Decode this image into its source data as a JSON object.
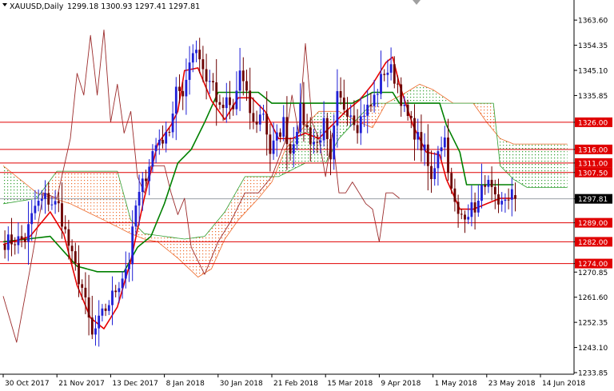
{
  "header": {
    "symbol_title": "XAUUSD,Daily",
    "ohlc": "1299.18 1300.93 1297.41 1297.81"
  },
  "colors": {
    "background": "#ffffff",
    "bull_candle": "#1f1fd6",
    "bear_candle": "#6b0000",
    "tenkan": "#e60000",
    "kijun": "#008000",
    "chikou": "#9b2b2b",
    "cloud_bull": "#2e9e2e",
    "cloud_bear": "#ee6a2a",
    "level_line": "#e00000",
    "level_box": "#e00000",
    "current_price_box": "#000000",
    "current_price_line": "#9aa0a6",
    "axis_text": "#000000"
  },
  "chart_data": {
    "type": "candlestick",
    "title": "XAUUSD,Daily",
    "ohlc_readout": {
      "open": 1299.18,
      "high": 1300.93,
      "low": 1297.41,
      "close": 1297.81
    },
    "ylim": [
      1233.85,
      1371.0
    ],
    "y_ticks": [
      "1363.60",
      "1354.35",
      "1345.10",
      "1335.85",
      "1326.00",
      "1316.00",
      "1311.00",
      "1307.50",
      "1297.81",
      "1289.00",
      "1282.00",
      "1274.00",
      "1270.85",
      "1261.60",
      "1252.35",
      "1243.10",
      "1233.85"
    ],
    "y_tick_values": [
      1363.6,
      1354.35,
      1345.1,
      1335.85,
      1270.85,
      1261.6,
      1252.35,
      1243.1,
      1233.85
    ],
    "x_ticks": [
      "30 Oct 2017",
      "21 Nov 2017",
      "13 Dec 2017",
      "8 Jan 2018",
      "30 Jan 2018",
      "21 Feb 2018",
      "15 Mar 2018",
      "9 Apr 2018",
      "1 May 2018",
      "23 May 2018",
      "14 Jun 2018"
    ],
    "x_tick_bars": [
      0,
      16,
      32,
      48,
      64,
      80,
      96,
      112,
      128,
      144,
      160
    ],
    "bars_total": 170,
    "candle_count": 153,
    "horizontal_levels": [
      1326.0,
      1316.0,
      1311.0,
      1307.5,
      1289.0,
      1282.0,
      1274.0
    ],
    "current_price": 1297.81,
    "anchors": {
      "close": [
        [
          0,
          1282
        ],
        [
          6,
          1283
        ],
        [
          9,
          1295
        ],
        [
          12,
          1298
        ],
        [
          16,
          1295
        ],
        [
          20,
          1276
        ],
        [
          23,
          1265
        ],
        [
          26,
          1247
        ],
        [
          29,
          1255
        ],
        [
          32,
          1262
        ],
        [
          34,
          1267
        ],
        [
          37,
          1275
        ],
        [
          39,
          1295
        ],
        [
          41,
          1303
        ],
        [
          44,
          1315
        ],
        [
          46,
          1320
        ],
        [
          48,
          1320
        ],
        [
          50,
          1330
        ],
        [
          51,
          1340
        ],
        [
          53,
          1333
        ],
        [
          55,
          1350
        ],
        [
          57,
          1354
        ],
        [
          60,
          1342
        ],
        [
          62,
          1340
        ],
        [
          64,
          1330
        ],
        [
          66,
          1333
        ],
        [
          68,
          1330
        ],
        [
          70,
          1345
        ],
        [
          72,
          1335
        ],
        [
          74,
          1325
        ],
        [
          77,
          1330
        ],
        [
          79,
          1315
        ],
        [
          81,
          1320
        ],
        [
          83,
          1326
        ],
        [
          85,
          1315
        ],
        [
          88,
          1330
        ],
        [
          91,
          1320
        ],
        [
          93,
          1318
        ],
        [
          95,
          1325
        ],
        [
          97,
          1310
        ],
        [
          99,
          1335
        ],
        [
          101,
          1332
        ],
        [
          103,
          1330
        ],
        [
          105,
          1325
        ],
        [
          107,
          1330
        ],
        [
          109,
          1332
        ],
        [
          111,
          1338
        ],
        [
          113,
          1345
        ],
        [
          115,
          1345
        ],
        [
          117,
          1340
        ],
        [
          119,
          1330
        ],
        [
          121,
          1325
        ],
        [
          123,
          1320
        ],
        [
          125,
          1315
        ],
        [
          127,
          1304
        ],
        [
          129,
          1317
        ],
        [
          131,
          1320
        ],
        [
          133,
          1300
        ],
        [
          135,
          1291
        ],
        [
          137,
          1293
        ],
        [
          139,
          1294
        ],
        [
          141,
          1296
        ],
        [
          143,
          1305
        ],
        [
          145,
          1300
        ],
        [
          147,
          1293
        ],
        [
          149,
          1298
        ],
        [
          151,
          1300
        ],
        [
          152,
          1297.81
        ]
      ],
      "tenkan": [
        [
          0,
          1281
        ],
        [
          8,
          1284
        ],
        [
          14,
          1293
        ],
        [
          18,
          1285
        ],
        [
          22,
          1266
        ],
        [
          26,
          1254
        ],
        [
          30,
          1250
        ],
        [
          34,
          1258
        ],
        [
          38,
          1275
        ],
        [
          42,
          1298
        ],
        [
          46,
          1318
        ],
        [
          50,
          1325
        ],
        [
          52,
          1330
        ],
        [
          54,
          1345
        ],
        [
          58,
          1346
        ],
        [
          62,
          1334
        ],
        [
          66,
          1327
        ],
        [
          70,
          1335
        ],
        [
          74,
          1335
        ],
        [
          78,
          1330
        ],
        [
          82,
          1320
        ],
        [
          86,
          1320
        ],
        [
          90,
          1322
        ],
        [
          94,
          1320
        ],
        [
          98,
          1325
        ],
        [
          102,
          1330
        ],
        [
          106,
          1334
        ],
        [
          110,
          1340
        ],
        [
          114,
          1348
        ],
        [
          116,
          1350
        ],
        [
          118,
          1340
        ],
        [
          122,
          1325
        ],
        [
          126,
          1315
        ],
        [
          130,
          1314
        ],
        [
          132,
          1305
        ],
        [
          136,
          1294
        ],
        [
          140,
          1294
        ],
        [
          144,
          1296
        ],
        [
          148,
          1298
        ],
        [
          152,
          1298
        ]
      ],
      "kijun": [
        [
          0,
          1282
        ],
        [
          14,
          1284
        ],
        [
          22,
          1273
        ],
        [
          28,
          1271
        ],
        [
          32,
          1271
        ],
        [
          36,
          1271
        ],
        [
          40,
          1280
        ],
        [
          44,
          1284
        ],
        [
          48,
          1296
        ],
        [
          52,
          1311
        ],
        [
          56,
          1316
        ],
        [
          60,
          1326
        ],
        [
          64,
          1337
        ],
        [
          76,
          1337
        ],
        [
          80,
          1333
        ],
        [
          88,
          1333
        ],
        [
          100,
          1333
        ],
        [
          104,
          1333
        ],
        [
          110,
          1337
        ],
        [
          116,
          1337
        ],
        [
          118,
          1333
        ],
        [
          122,
          1333
        ],
        [
          130,
          1333
        ],
        [
          132,
          1325
        ],
        [
          136,
          1315
        ],
        [
          138,
          1303
        ],
        [
          140,
          1303
        ],
        [
          144,
          1303
        ],
        [
          152,
          1303
        ]
      ],
      "chikou": [
        [
          0,
          1262
        ],
        [
          4,
          1245
        ],
        [
          8,
          1272
        ],
        [
          12,
          1300
        ],
        [
          16,
          1298
        ],
        [
          20,
          1320
        ],
        [
          22,
          1344
        ],
        [
          24,
          1336
        ],
        [
          26,
          1358
        ],
        [
          28,
          1336
        ],
        [
          30,
          1360
        ],
        [
          32,
          1326
        ],
        [
          34,
          1340
        ],
        [
          36,
          1322
        ],
        [
          38,
          1330
        ],
        [
          40,
          1306
        ],
        [
          42,
          1300
        ],
        [
          44,
          1310
        ],
        [
          46,
          1310
        ],
        [
          48,
          1310
        ],
        [
          50,
          1300
        ],
        [
          52,
          1292
        ],
        [
          54,
          1298
        ],
        [
          56,
          1280
        ],
        [
          60,
          1270
        ],
        [
          64,
          1282
        ],
        [
          68,
          1290
        ],
        [
          72,
          1300
        ],
        [
          76,
          1300
        ],
        [
          80,
          1306
        ],
        [
          84,
          1319
        ],
        [
          86,
          1336
        ],
        [
          88,
          1322
        ],
        [
          90,
          1355
        ],
        [
          92,
          1326
        ],
        [
          94,
          1320
        ],
        [
          96,
          1306
        ],
        [
          98,
          1322
        ],
        [
          100,
          1300
        ],
        [
          102,
          1300
        ],
        [
          104,
          1304
        ],
        [
          106,
          1300
        ],
        [
          108,
          1296
        ],
        [
          110,
          1294
        ],
        [
          112,
          1282
        ],
        [
          114,
          1300
        ],
        [
          116,
          1300
        ],
        [
          118,
          1298
        ]
      ],
      "span_a": [
        [
          0,
          1310
        ],
        [
          10,
          1300
        ],
        [
          20,
          1296
        ],
        [
          30,
          1290
        ],
        [
          38,
          1285
        ],
        [
          42,
          1283
        ],
        [
          46,
          1282
        ],
        [
          52,
          1276
        ],
        [
          58,
          1269
        ],
        [
          62,
          1272
        ],
        [
          66,
          1283
        ],
        [
          70,
          1290
        ],
        [
          76,
          1298
        ],
        [
          80,
          1304
        ],
        [
          84,
          1316
        ],
        [
          90,
          1325
        ],
        [
          94,
          1330
        ],
        [
          100,
          1330
        ],
        [
          106,
          1326
        ],
        [
          110,
          1324
        ],
        [
          114,
          1333
        ],
        [
          120,
          1337
        ],
        [
          124,
          1340
        ],
        [
          128,
          1338
        ],
        [
          134,
          1333
        ],
        [
          140,
          1333
        ],
        [
          144,
          1326
        ],
        [
          148,
          1320
        ],
        [
          152,
          1318
        ],
        [
          160,
          1318
        ],
        [
          168,
          1318
        ]
      ],
      "span_b": [
        [
          0,
          1296
        ],
        [
          10,
          1298
        ],
        [
          16,
          1308
        ],
        [
          20,
          1308
        ],
        [
          26,
          1308
        ],
        [
          34,
          1308
        ],
        [
          38,
          1290
        ],
        [
          42,
          1285
        ],
        [
          48,
          1284
        ],
        [
          54,
          1283
        ],
        [
          60,
          1284
        ],
        [
          66,
          1293
        ],
        [
          72,
          1306
        ],
        [
          76,
          1306
        ],
        [
          82,
          1306
        ],
        [
          90,
          1311
        ],
        [
          96,
          1311
        ],
        [
          100,
          1320
        ],
        [
          106,
          1328
        ],
        [
          110,
          1333
        ],
        [
          120,
          1333
        ],
        [
          130,
          1333
        ],
        [
          140,
          1333
        ],
        [
          146,
          1333
        ],
        [
          148,
          1310
        ],
        [
          152,
          1305
        ],
        [
          156,
          1302
        ],
        [
          160,
          1302
        ],
        [
          168,
          1302
        ]
      ]
    }
  }
}
